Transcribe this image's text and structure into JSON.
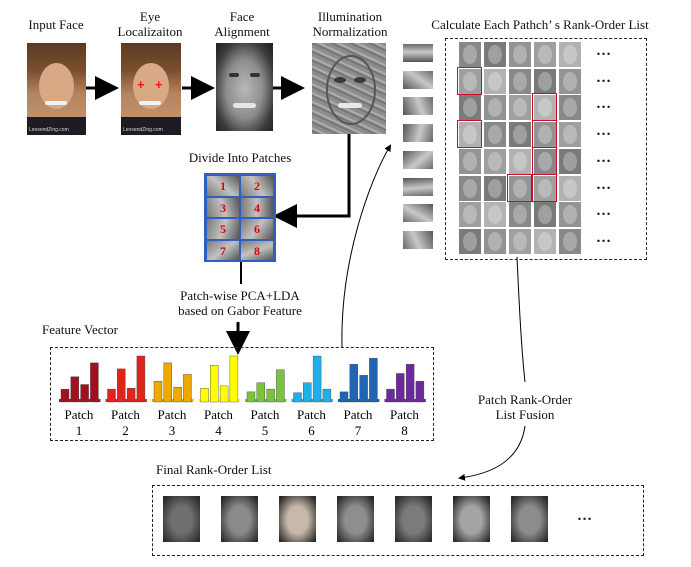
{
  "pipeline": {
    "input_face": "Input Face",
    "eye_localization": "Eye\nLocalizaiton",
    "face_alignment": "Face\nAlignment",
    "illumination_normalization": "Illumination\nNormalization",
    "divide_patches": "Divide Into Patches",
    "patch_numbers": [
      "1",
      "2",
      "3",
      "4",
      "5",
      "6",
      "7",
      "8"
    ],
    "pca_lda": "Patch-wise PCA+LDA\nbased on Gabor Feature",
    "watermark": "LeosendZing.com"
  },
  "rank_order": {
    "title": "Calculate Each Pathch’ s Rank-Order List",
    "ellipsis": "…",
    "highlights": [
      [
        5,
        3
      ],
      [
        3,
        0
      ],
      [
        4,
        3
      ],
      [
        5,
        0
      ],
      [
        6,
        3
      ],
      [
        7,
        2
      ],
      [
        7,
        3
      ]
    ]
  },
  "feature_vector": {
    "label": "Feature Vector",
    "patch_word": "Patch",
    "groups": [
      {
        "num": "1",
        "color": "#a01020",
        "bars": [
          0.28,
          0.55,
          0.38,
          0.85
        ]
      },
      {
        "num": "2",
        "color": "#e0241c",
        "bars": [
          0.28,
          0.72,
          0.3,
          1.0
        ]
      },
      {
        "num": "3",
        "color": "#f0a800",
        "bars": [
          0.45,
          0.85,
          0.32,
          0.6
        ]
      },
      {
        "num": "4",
        "color": "#ffff00",
        "bars": [
          0.3,
          0.8,
          0.35,
          1.0
        ]
      },
      {
        "num": "5",
        "color": "#7cc33c",
        "bars": [
          0.22,
          0.42,
          0.28,
          0.7
        ]
      },
      {
        "num": "6",
        "color": "#22aee8",
        "bars": [
          0.2,
          0.42,
          1.0,
          0.28
        ]
      },
      {
        "num": "7",
        "color": "#1f65b4",
        "bars": [
          0.22,
          0.82,
          0.58,
          0.95
        ]
      },
      {
        "num": "8",
        "color": "#6b2a9c",
        "bars": [
          0.28,
          0.62,
          0.82,
          0.45
        ]
      }
    ]
  },
  "fusion": {
    "label": "Patch Rank-Order\nList Fusion"
  },
  "final_list": {
    "label": "Final Rank-Order List",
    "ellipsis": "…",
    "count": 7
  },
  "colors": {
    "highlight": "#c8102e",
    "patch_border": "#4a7fd4",
    "patch_number": "#e00000"
  }
}
